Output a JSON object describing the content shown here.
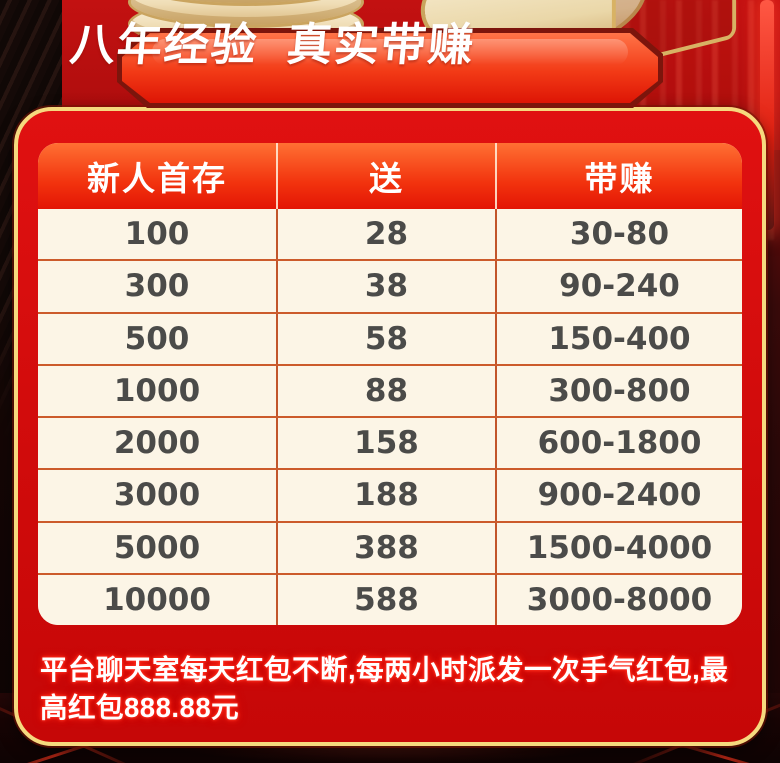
{
  "banner": {
    "title": "八年经验  真实带赚"
  },
  "table": {
    "headers": [
      "新人首存",
      "送",
      "带赚"
    ],
    "rows": [
      [
        "100",
        "28",
        "30-80"
      ],
      [
        "300",
        "38",
        "90-240"
      ],
      [
        "500",
        "58",
        "150-400"
      ],
      [
        "1000",
        "88",
        "300-800"
      ],
      [
        "2000",
        "158",
        "600-1800"
      ],
      [
        "3000",
        "188",
        "900-2400"
      ],
      [
        "5000",
        "388",
        "1500-4000"
      ],
      [
        "10000",
        "588",
        "3000-8000"
      ]
    ]
  },
  "footer": {
    "note": "平台聊天室每天红包不断,每两小时派发一次手气红包,最高红包888.88元"
  },
  "colors": {
    "panel_gold_border": "#f6d97e",
    "panel_red": "#d00b0b",
    "banner_border": "#7c150c",
    "banner_red_top": "#ff7448",
    "banner_red_bottom": "#dd1505",
    "header_gradient_top": "#ff7033",
    "header_gradient_bottom": "#e31505",
    "table_body_bg": "#fcf5e6",
    "table_grid": "#c2552a",
    "cell_text": "#4b4b49",
    "footer_glow": "#ff2a1a"
  }
}
